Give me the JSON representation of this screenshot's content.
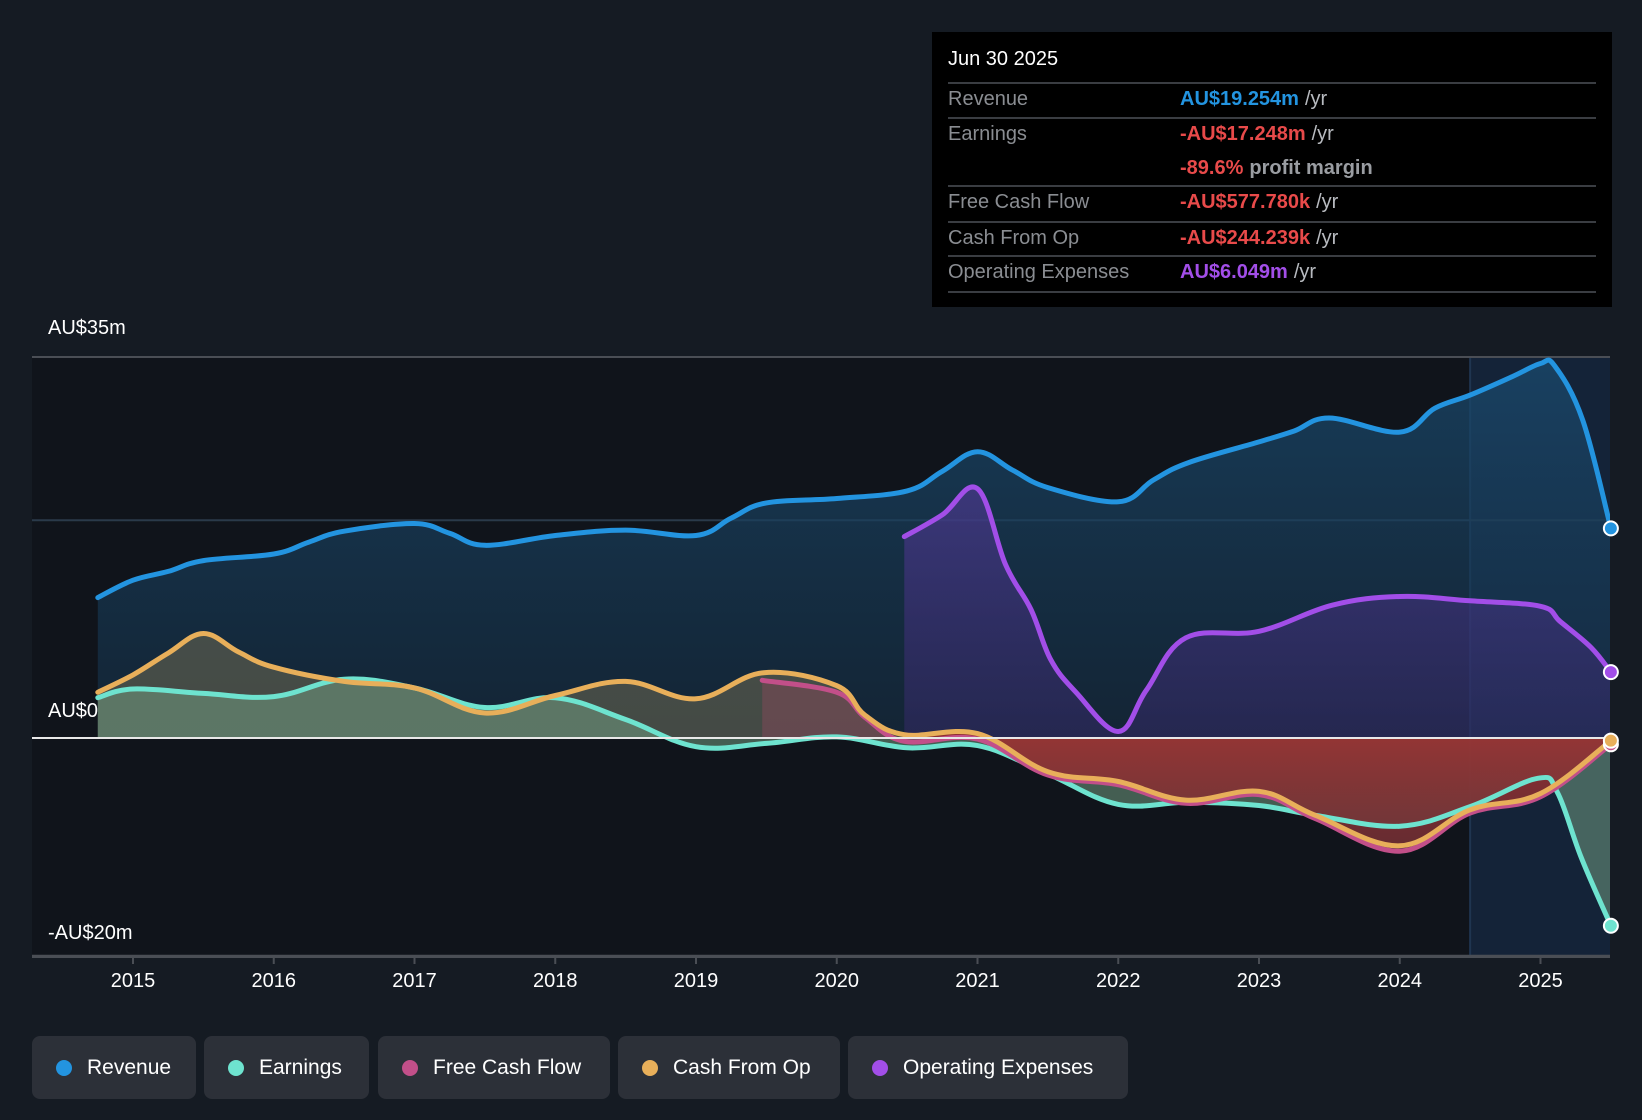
{
  "chart_data": {
    "type": "line",
    "title": "",
    "xlabel": "",
    "ylabel": "",
    "currency": "AU$",
    "units": "millions",
    "xlim": [
      2014.75,
      2025.5
    ],
    "ylim": [
      -20,
      35
    ],
    "y_ticks": [
      {
        "value": 35,
        "label": "AU$35m"
      },
      {
        "value": 20,
        "label": ""
      },
      {
        "value": 0,
        "label": "AU$0"
      },
      {
        "value": -20,
        "label": "-AU$20m"
      }
    ],
    "x_ticks": [
      {
        "value": 2015,
        "label": "2015"
      },
      {
        "value": 2016,
        "label": "2016"
      },
      {
        "value": 2017,
        "label": "2017"
      },
      {
        "value": 2018,
        "label": "2018"
      },
      {
        "value": 2019,
        "label": "2019"
      },
      {
        "value": 2020,
        "label": "2020"
      },
      {
        "value": 2021,
        "label": "2021"
      },
      {
        "value": 2022,
        "label": "2022"
      },
      {
        "value": 2023,
        "label": "2023"
      },
      {
        "value": 2024,
        "label": "2024"
      },
      {
        "value": 2025,
        "label": "2025"
      }
    ],
    "grid": true,
    "highlight_region_start": 2024.5,
    "legend_position": "bottom-left",
    "series": [
      {
        "name": "Revenue",
        "color": "#2394e0",
        "x": [
          2014.75,
          2015.0,
          2015.25,
          2015.5,
          2016.0,
          2016.25,
          2016.5,
          2017.0,
          2017.25,
          2017.5,
          2018.0,
          2018.5,
          2019.0,
          2019.25,
          2019.5,
          2020.0,
          2020.5,
          2020.75,
          2021.0,
          2021.25,
          2021.5,
          2022.0,
          2022.25,
          2022.5,
          2023.0,
          2023.25,
          2023.5,
          2024.0,
          2024.25,
          2024.5,
          2024.8,
          2025.0,
          2025.1,
          2025.3,
          2025.5
        ],
        "values": [
          12.9,
          14.5,
          15.3,
          16.3,
          16.9,
          18.0,
          19.0,
          19.7,
          18.8,
          17.7,
          18.6,
          19.1,
          18.6,
          20.2,
          21.6,
          22.0,
          22.7,
          24.5,
          26.3,
          24.6,
          23.0,
          21.7,
          23.7,
          25.3,
          27.2,
          28.2,
          29.4,
          28.1,
          30.3,
          31.5,
          33.2,
          34.4,
          34.2,
          29.2,
          19.254
        ]
      },
      {
        "name": "Earnings",
        "color": "#6ee3cf",
        "x": [
          2014.75,
          2015.0,
          2015.5,
          2016.0,
          2016.5,
          2017.0,
          2017.5,
          2018.0,
          2018.5,
          2019.0,
          2019.5,
          2020.0,
          2020.5,
          2021.0,
          2021.5,
          2022.0,
          2022.5,
          2023.0,
          2023.4,
          2024.0,
          2024.5,
          2024.98,
          2025.12,
          2025.29,
          2025.5
        ],
        "values": [
          3.7,
          4.5,
          4.1,
          3.8,
          5.4,
          4.6,
          2.8,
          3.7,
          1.7,
          -0.8,
          -0.5,
          0.1,
          -0.9,
          -0.7,
          -3.3,
          -6.1,
          -5.9,
          -6.2,
          -7.1,
          -8.1,
          -6.3,
          -3.7,
          -5.0,
          -11.0,
          -17.248
        ]
      },
      {
        "name": "Free Cash Flow",
        "color": "#c24f89",
        "x": [
          2019.47,
          2020.0,
          2020.2,
          2020.48,
          2021.0,
          2021.5,
          2022.0,
          2022.48,
          2023.0,
          2023.4,
          2024.0,
          2024.5,
          2025.0,
          2025.5
        ],
        "values": [
          5.3,
          4.2,
          1.9,
          -0.3,
          -0.1,
          -3.4,
          -4.3,
          -6.0,
          -5.2,
          -7.4,
          -10.4,
          -6.9,
          -5.4,
          -0.578
        ]
      },
      {
        "name": "Cash From Op",
        "color": "#e8af5a",
        "x": [
          2014.75,
          2015.0,
          2015.25,
          2015.5,
          2015.75,
          2016.0,
          2016.5,
          2017.0,
          2017.5,
          2018.0,
          2018.5,
          2019.0,
          2019.48,
          2020.0,
          2020.2,
          2020.48,
          2021.0,
          2021.5,
          2022.0,
          2022.48,
          2023.0,
          2023.4,
          2024.0,
          2024.5,
          2025.0,
          2025.5
        ],
        "values": [
          4.2,
          5.8,
          7.8,
          9.6,
          7.9,
          6.5,
          5.2,
          4.6,
          2.3,
          3.9,
          5.2,
          3.6,
          6.0,
          4.8,
          2.1,
          0.3,
          0.4,
          -3.1,
          -4.0,
          -5.7,
          -4.9,
          -7.1,
          -9.9,
          -6.6,
          -5.1,
          -0.244
        ]
      },
      {
        "name": "Operating Expenses",
        "color": "#a24ee8",
        "x": [
          2020.48,
          2020.75,
          2021.0,
          2021.2,
          2021.38,
          2021.52,
          2021.7,
          2022.0,
          2022.2,
          2022.48,
          2023.0,
          2023.52,
          2024.0,
          2024.5,
          2025.0,
          2025.14,
          2025.36,
          2025.5
        ],
        "values": [
          18.5,
          20.5,
          22.9,
          15.9,
          11.8,
          7.2,
          4.2,
          0.6,
          4.4,
          9.2,
          9.8,
          12.2,
          13.0,
          12.6,
          12.1,
          10.7,
          8.3,
          6.049
        ]
      }
    ]
  },
  "tooltip": {
    "date": "Jun 30 2025",
    "rows": [
      {
        "label": "Revenue",
        "value": "AU$19.254m",
        "unit": "/yr",
        "color": "#2394e0"
      },
      {
        "label": "Earnings",
        "value": "-AU$17.248m",
        "unit": "/yr",
        "color": "#e84a4a"
      },
      {
        "label": "",
        "value": "-89.6%",
        "unit": "profit margin",
        "color": "#e84a4a"
      },
      {
        "label": "Free Cash Flow",
        "value": "-AU$577.780k",
        "unit": "/yr",
        "color": "#e84a4a"
      },
      {
        "label": "Cash From Op",
        "value": "-AU$244.239k",
        "unit": "/yr",
        "color": "#e84a4a"
      },
      {
        "label": "Operating Expenses",
        "value": "AU$6.049m",
        "unit": "/yr",
        "color": "#a24ee8"
      }
    ]
  },
  "legend": [
    {
      "label": "Revenue",
      "color": "#2394e0"
    },
    {
      "label": "Earnings",
      "color": "#6ee3cf"
    },
    {
      "label": "Free Cash Flow",
      "color": "#c24f89"
    },
    {
      "label": "Cash From Op",
      "color": "#e8af5a"
    },
    {
      "label": "Operating Expenses",
      "color": "#a24ee8"
    }
  ]
}
